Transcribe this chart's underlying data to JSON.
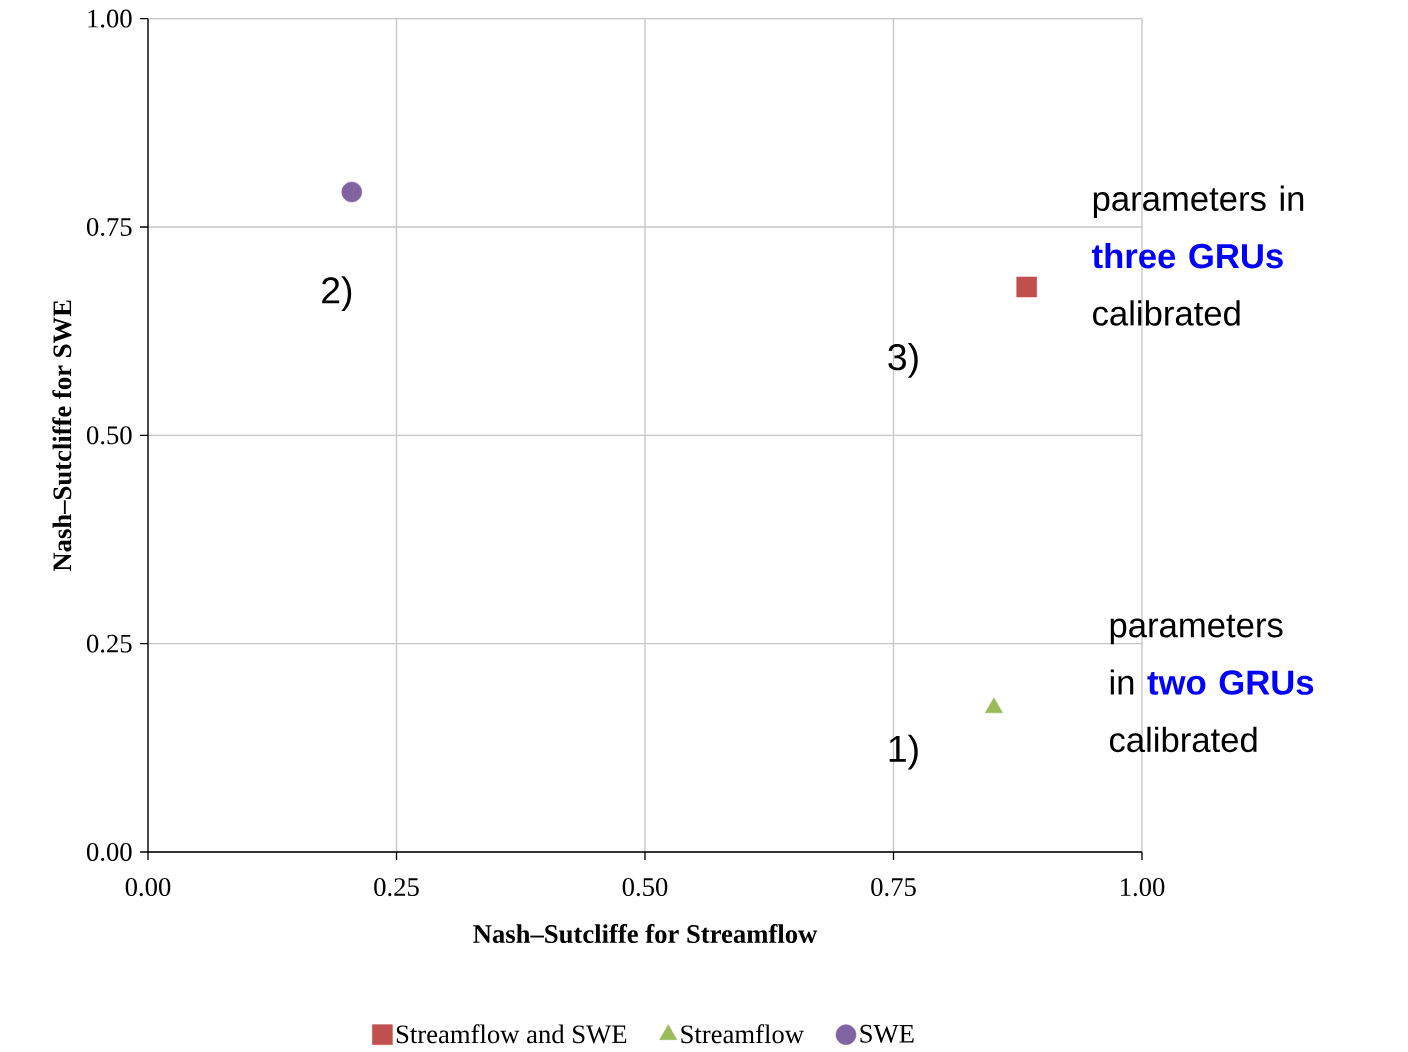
{
  "chart_data": {
    "type": "scatter",
    "xlabel": "Nash–Sutcliffe for Streamflow",
    "ylabel": "Nash–Sutcliffe for SWE",
    "xlim": [
      0,
      1
    ],
    "ylim": [
      0,
      1
    ],
    "xticks": [
      {
        "value": 0,
        "label": "0.00"
      },
      {
        "value": 0.25,
        "label": "0.25"
      },
      {
        "value": 0.5,
        "label": "0.50"
      },
      {
        "value": 0.75,
        "label": "0.75"
      },
      {
        "value": 1,
        "label": "1.00"
      }
    ],
    "yticks": [
      {
        "value": 0,
        "label": "0.00"
      },
      {
        "value": 0.25,
        "label": "0.25"
      },
      {
        "value": 0.5,
        "label": "0.50"
      },
      {
        "value": 0.75,
        "label": "0.75"
      },
      {
        "value": 1,
        "label": "1.00"
      }
    ],
    "grid": true,
    "legend": "bottom",
    "series": [
      {
        "name": "Streamflow and SWE",
        "color": "#c0504d",
        "marker": "square",
        "x": [
          0.884
        ],
        "values": [
          0.678
        ]
      },
      {
        "name": "Streamflow",
        "color": "#9bbb59",
        "marker": "triangle",
        "x": [
          0.851
        ],
        "values": [
          0.173
        ]
      },
      {
        "name": "SWE",
        "color": "#8064a2",
        "marker": "circle",
        "x": [
          0.205
        ],
        "values": [
          0.792
        ]
      }
    ],
    "annotations": [
      "1)",
      "2)",
      "3)",
      "parameters in **three GRUs** calibrated",
      "parameters in **two GRUs** calibrated"
    ]
  }
}
